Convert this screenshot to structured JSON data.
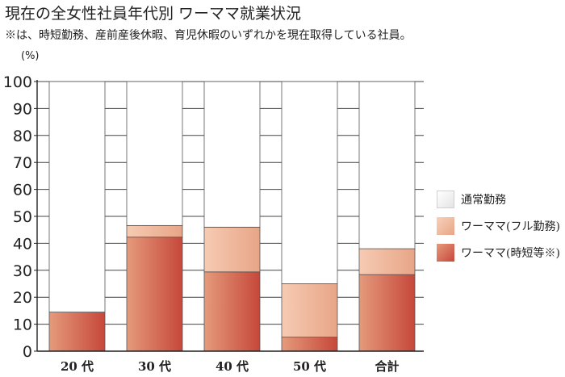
{
  "title": "現在の全女性社員年代別 ワーママ就業状況",
  "subtitle": "※は、時短勤務、産前産後休暇、育児休暇のいずれかを現在取得している社員。",
  "chart_data": {
    "type": "bar",
    "stacked": true,
    "unit_label": "(%)",
    "categories": [
      "20 代",
      "30 代",
      "40 代",
      "50 代",
      "合計"
    ],
    "series": [
      {
        "name": "ワーママ(時短等※)",
        "values": [
          14.5,
          42.3,
          29.4,
          5.2,
          28.4
        ],
        "color": "#cc5a45"
      },
      {
        "name": "ワーママ(フル勤務)",
        "values": [
          0,
          4.3,
          16.6,
          19.8,
          9.6
        ],
        "color": "#f0b596"
      },
      {
        "name": "通常勤務",
        "values": [
          85.5,
          53.4,
          54.0,
          75.0,
          62.0
        ],
        "color": "#ffffff"
      }
    ],
    "ylim": [
      0,
      100
    ],
    "yticks": [
      0,
      10,
      20,
      30,
      40,
      50,
      60,
      70,
      80,
      90,
      100
    ],
    "grid": true,
    "legend_position": "right",
    "legend": [
      "通常勤務",
      "ワーママ(フル勤務)",
      "ワーママ(時短等※)"
    ]
  }
}
